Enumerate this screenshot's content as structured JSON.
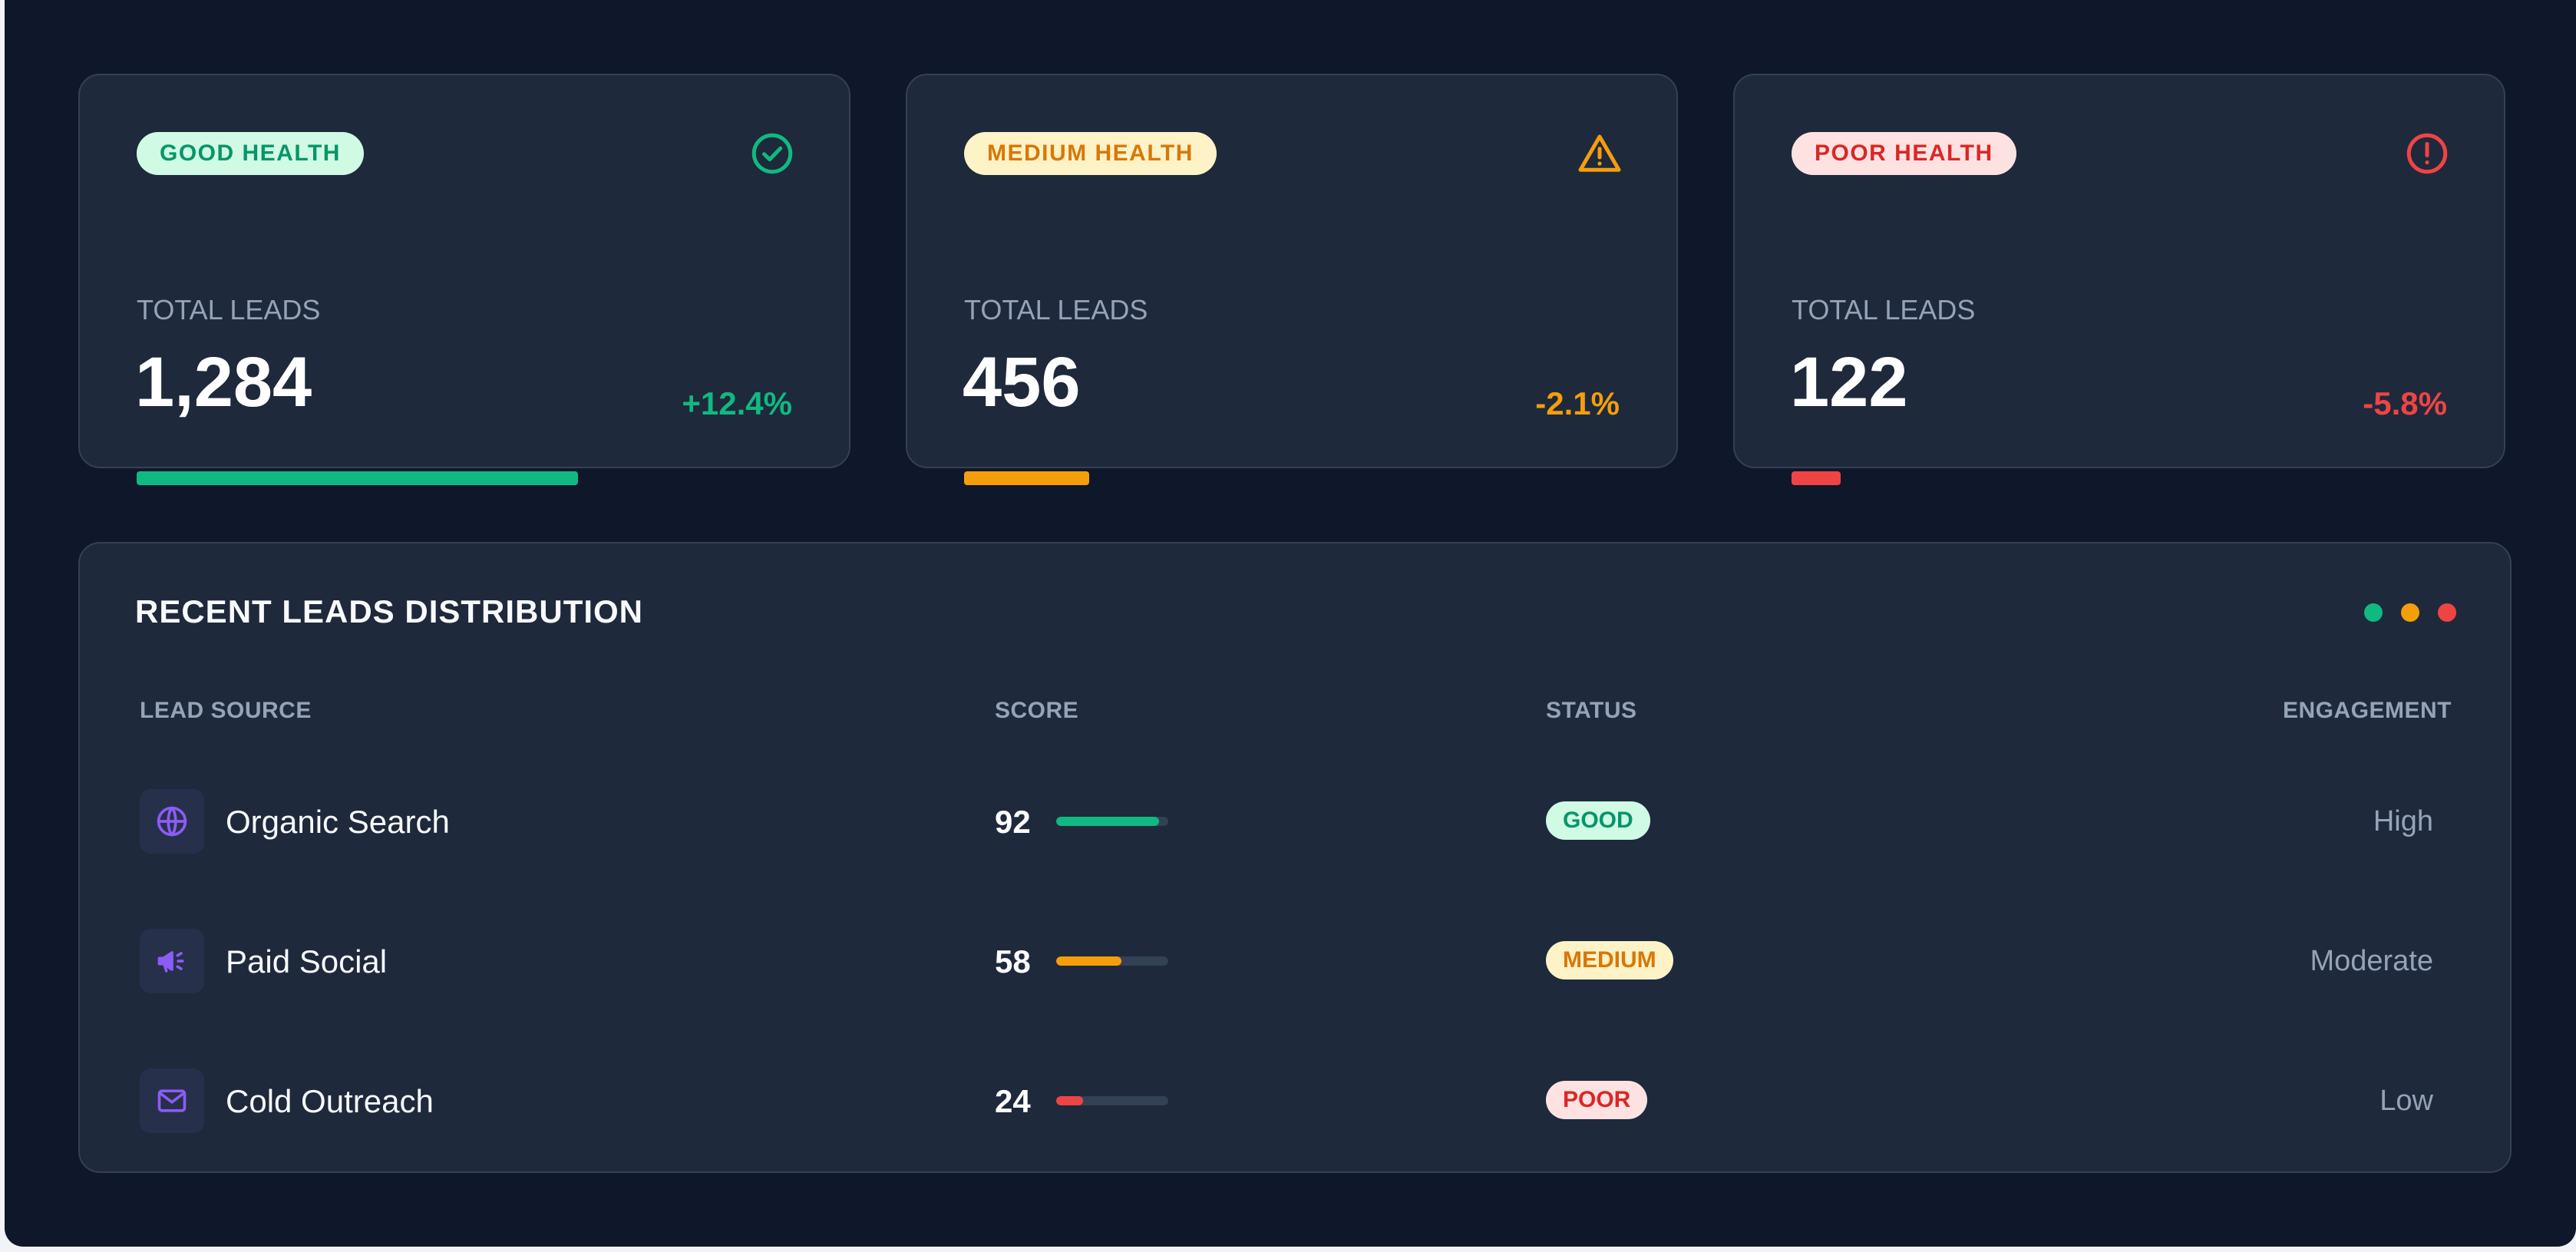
{
  "cards": [
    {
      "badge": "GOOD HEALTH",
      "icon": "check-circle-icon",
      "label": "TOTAL LEADS",
      "value": "1,284",
      "trend": "+12.4%",
      "color": "#10b981",
      "progress_fraction": 0.67
    },
    {
      "badge": "MEDIUM HEALTH",
      "icon": "warning-triangle-icon",
      "label": "TOTAL LEADS",
      "value": "456",
      "trend": "-2.1%",
      "color": "#f59e0b",
      "progress_fraction": 0.19
    },
    {
      "badge": "POOR HEALTH",
      "icon": "alert-circle-icon",
      "label": "TOTAL LEADS",
      "value": "122",
      "trend": "-5.8%",
      "color": "#ef4444",
      "progress_fraction": 0.075
    }
  ],
  "distribution": {
    "title": "RECENT LEADS DISTRIBUTION",
    "legend_dot_colors": [
      "#10b981",
      "#f59e0b",
      "#ef4444"
    ],
    "columns": {
      "source": "LEAD SOURCE",
      "score": "SCORE",
      "status": "STATUS",
      "engagement": "ENGAGEMENT"
    },
    "rows": [
      {
        "icon": "globe-icon",
        "source": "Organic Search",
        "score": "92",
        "score_fraction": 0.92,
        "status": "GOOD",
        "status_level": "good",
        "engagement": "High",
        "color": "#10b981"
      },
      {
        "icon": "megaphone-icon",
        "source": "Paid Social",
        "score": "58",
        "score_fraction": 0.58,
        "status": "MEDIUM",
        "status_level": "medium",
        "engagement": "Moderate",
        "color": "#f59e0b"
      },
      {
        "icon": "mail-icon",
        "source": "Cold Outreach",
        "score": "24",
        "score_fraction": 0.24,
        "status": "POOR",
        "status_level": "poor",
        "engagement": "Low",
        "color": "#ef4444"
      }
    ]
  }
}
